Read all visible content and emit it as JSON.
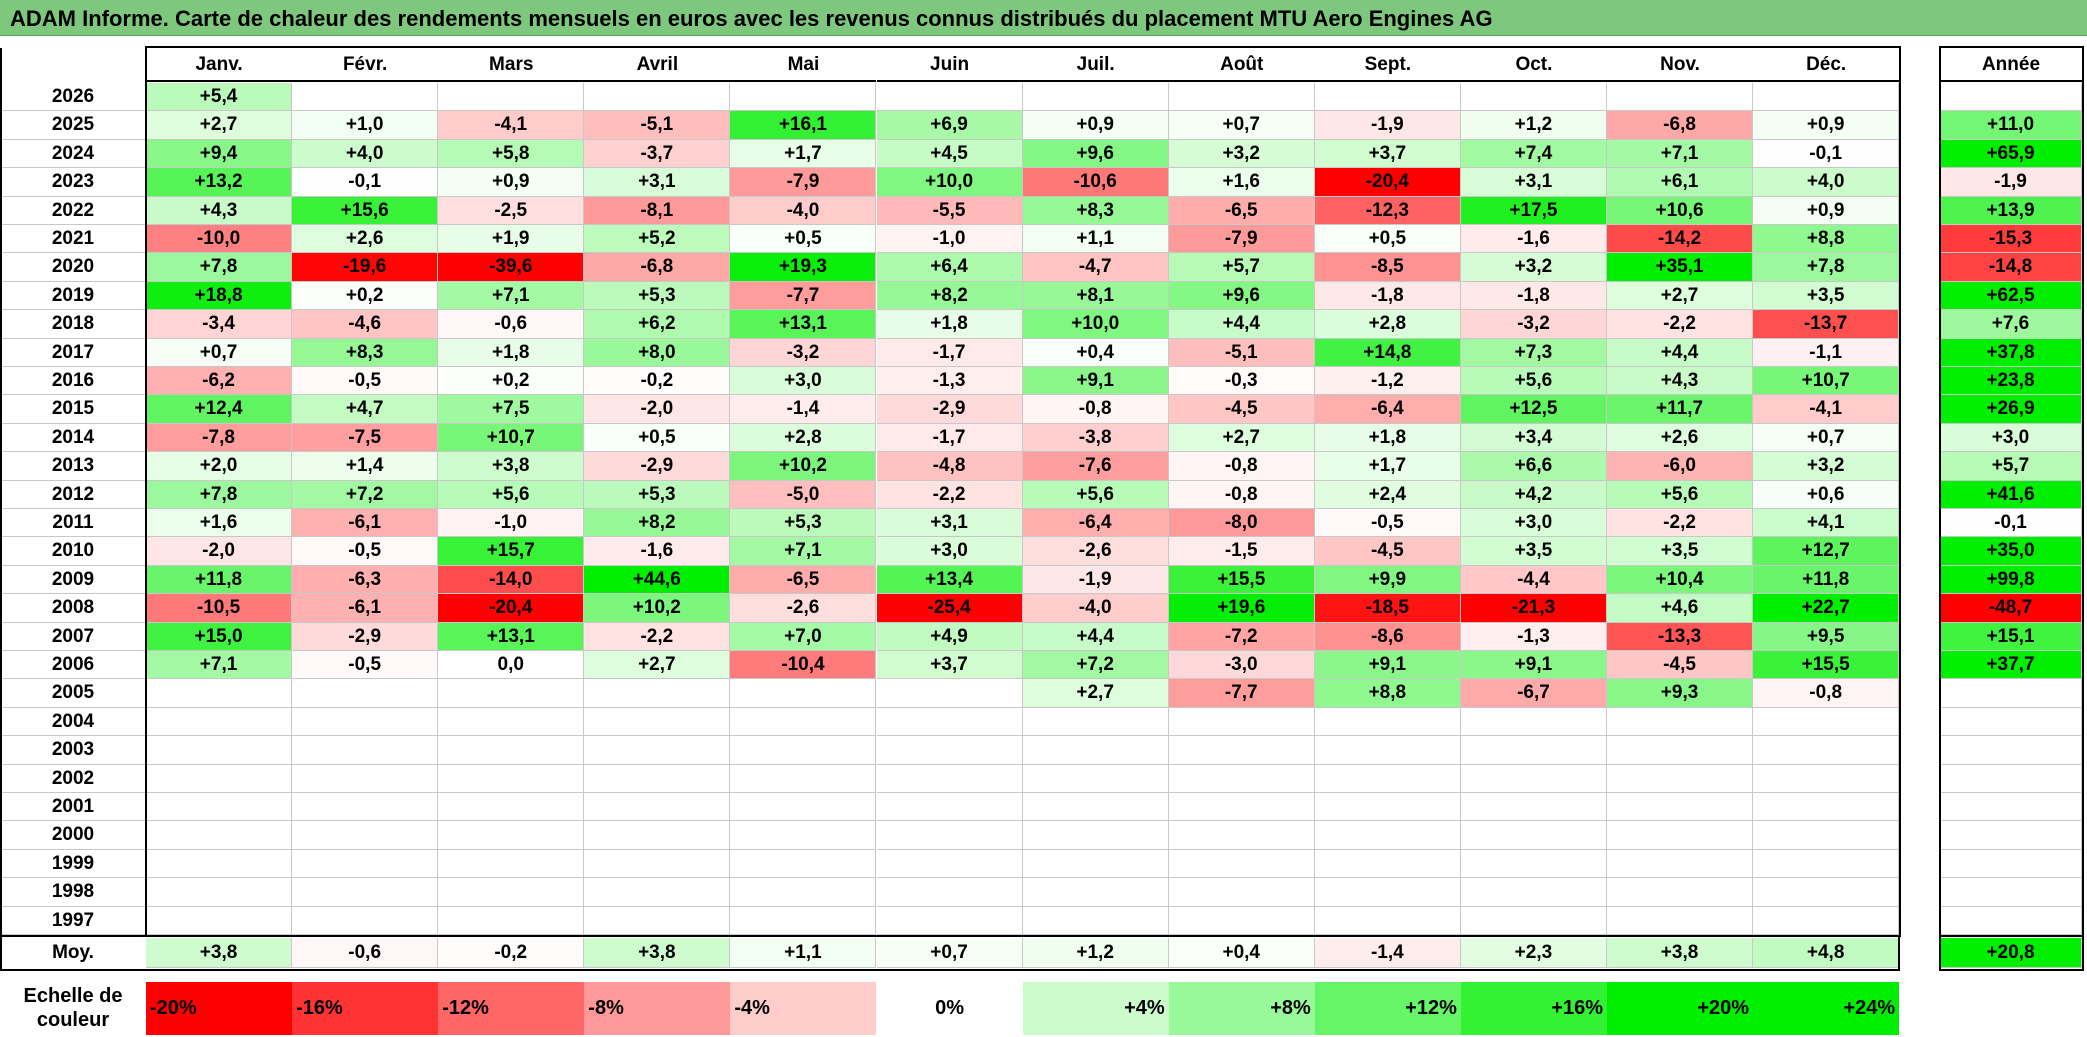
{
  "title": "ADAM Informe. Carte de chaleur des rendements mensuels en euros avec les revenus connus distribués du placement MTU Aero Engines AG",
  "chart_data": {
    "type": "heatmap",
    "months": [
      "Janv.",
      "Févr.",
      "Mars",
      "Avril",
      "Mai",
      "Juin",
      "Juil.",
      "Août",
      "Sept.",
      "Oct.",
      "Nov.",
      "Déc."
    ],
    "year_header": "Année",
    "avg_label": "Moy.",
    "scale_label": "Echelle de couleur",
    "rows": [
      {
        "year": "2026",
        "values": [
          "+5,4",
          "",
          "",
          "",
          "",
          "",
          "",
          "",
          "",
          "",
          "",
          ""
        ],
        "annual": ""
      },
      {
        "year": "2025",
        "values": [
          "+2,7",
          "+1,0",
          "-4,1",
          "-5,1",
          "+16,1",
          "+6,9",
          "+0,9",
          "+0,7",
          "-1,9",
          "+1,2",
          "-6,8",
          "+0,9"
        ],
        "annual": "+11,0"
      },
      {
        "year": "2024",
        "values": [
          "+9,4",
          "+4,0",
          "+5,8",
          "-3,7",
          "+1,7",
          "+4,5",
          "+9,6",
          "+3,2",
          "+3,7",
          "+7,4",
          "+7,1",
          "-0,1"
        ],
        "annual": "+65,9"
      },
      {
        "year": "2023",
        "values": [
          "+13,2",
          "-0,1",
          "+0,9",
          "+3,1",
          "-7,9",
          "+10,0",
          "-10,6",
          "+1,6",
          "-20,4",
          "+3,1",
          "+6,1",
          "+4,0"
        ],
        "annual": "-1,9"
      },
      {
        "year": "2022",
        "values": [
          "+4,3",
          "+15,6",
          "-2,5",
          "-8,1",
          "-4,0",
          "-5,5",
          "+8,3",
          "-6,5",
          "-12,3",
          "+17,5",
          "+10,6",
          "+0,9"
        ],
        "annual": "+13,9"
      },
      {
        "year": "2021",
        "values": [
          "-10,0",
          "+2,6",
          "+1,9",
          "+5,2",
          "+0,5",
          "-1,0",
          "+1,1",
          "-7,9",
          "+0,5",
          "-1,6",
          "-14,2",
          "+8,8"
        ],
        "annual": "-15,3"
      },
      {
        "year": "2020",
        "values": [
          "+7,8",
          "-19,6",
          "-39,6",
          "-6,8",
          "+19,3",
          "+6,4",
          "-4,7",
          "+5,7",
          "-8,5",
          "+3,2",
          "+35,1",
          "+7,8"
        ],
        "annual": "-14,8"
      },
      {
        "year": "2019",
        "values": [
          "+18,8",
          "+0,2",
          "+7,1",
          "+5,3",
          "-7,7",
          "+8,2",
          "+8,1",
          "+9,6",
          "-1,8",
          "-1,8",
          "+2,7",
          "+3,5"
        ],
        "annual": "+62,5"
      },
      {
        "year": "2018",
        "values": [
          "-3,4",
          "-4,6",
          "-0,6",
          "+6,2",
          "+13,1",
          "+1,8",
          "+10,0",
          "+4,4",
          "+2,8",
          "-3,2",
          "-2,2",
          "-13,7"
        ],
        "annual": "+7,6"
      },
      {
        "year": "2017",
        "values": [
          "+0,7",
          "+8,3",
          "+1,8",
          "+8,0",
          "-3,2",
          "-1,7",
          "+0,4",
          "-5,1",
          "+14,8",
          "+7,3",
          "+4,4",
          "-1,1"
        ],
        "annual": "+37,8"
      },
      {
        "year": "2016",
        "values": [
          "-6,2",
          "-0,5",
          "+0,2",
          "-0,2",
          "+3,0",
          "-1,3",
          "+9,1",
          "-0,3",
          "-1,2",
          "+5,6",
          "+4,3",
          "+10,7"
        ],
        "annual": "+23,8"
      },
      {
        "year": "2015",
        "values": [
          "+12,4",
          "+4,7",
          "+7,5",
          "-2,0",
          "-1,4",
          "-2,9",
          "-0,8",
          "-4,5",
          "-6,4",
          "+12,5",
          "+11,7",
          "-4,1"
        ],
        "annual": "+26,9"
      },
      {
        "year": "2014",
        "values": [
          "-7,8",
          "-7,5",
          "+10,7",
          "+0,5",
          "+2,8",
          "-1,7",
          "-3,8",
          "+2,7",
          "+1,8",
          "+3,4",
          "+2,6",
          "+0,7"
        ],
        "annual": "+3,0"
      },
      {
        "year": "2013",
        "values": [
          "+2,0",
          "+1,4",
          "+3,8",
          "-2,9",
          "+10,2",
          "-4,8",
          "-7,6",
          "-0,8",
          "+1,7",
          "+6,6",
          "-6,0",
          "+3,2"
        ],
        "annual": "+5,7"
      },
      {
        "year": "2012",
        "values": [
          "+7,8",
          "+7,2",
          "+5,6",
          "+5,3",
          "-5,0",
          "-2,2",
          "+5,6",
          "-0,8",
          "+2,4",
          "+4,2",
          "+5,6",
          "+0,6"
        ],
        "annual": "+41,6"
      },
      {
        "year": "2011",
        "values": [
          "+1,6",
          "-6,1",
          "-1,0",
          "+8,2",
          "+5,3",
          "+3,1",
          "-6,4",
          "-8,0",
          "-0,5",
          "+3,0",
          "-2,2",
          "+4,1"
        ],
        "annual": "-0,1"
      },
      {
        "year": "2010",
        "values": [
          "-2,0",
          "-0,5",
          "+15,7",
          "-1,6",
          "+7,1",
          "+3,0",
          "-2,6",
          "-1,5",
          "-4,5",
          "+3,5",
          "+3,5",
          "+12,7"
        ],
        "annual": "+35,0"
      },
      {
        "year": "2009",
        "values": [
          "+11,8",
          "-6,3",
          "-14,0",
          "+44,6",
          "-6,5",
          "+13,4",
          "-1,9",
          "+15,5",
          "+9,9",
          "-4,4",
          "+10,4",
          "+11,8"
        ],
        "annual": "+99,8"
      },
      {
        "year": "2008",
        "values": [
          "-10,5",
          "-6,1",
          "-20,4",
          "+10,2",
          "-2,6",
          "-25,4",
          "-4,0",
          "+19,6",
          "-18,5",
          "-21,3",
          "+4,6",
          "+22,7"
        ],
        "annual": "-48,7"
      },
      {
        "year": "2007",
        "values": [
          "+15,0",
          "-2,9",
          "+13,1",
          "-2,2",
          "+7,0",
          "+4,9",
          "+4,4",
          "-7,2",
          "-8,6",
          "-1,3",
          "-13,3",
          "+9,5"
        ],
        "annual": "+15,1"
      },
      {
        "year": "2006",
        "values": [
          "+7,1",
          "-0,5",
          "0,0",
          "+2,7",
          "-10,4",
          "+3,7",
          "+7,2",
          "-3,0",
          "+9,1",
          "+9,1",
          "-4,5",
          "+15,5"
        ],
        "annual": "+37,7"
      },
      {
        "year": "2005",
        "values": [
          "",
          "",
          "",
          "",
          "",
          "",
          "+2,7",
          "-7,7",
          "+8,8",
          "-6,7",
          "+9,3",
          "-0,8"
        ],
        "annual": ""
      },
      {
        "year": "2004",
        "values": [
          "",
          "",
          "",
          "",
          "",
          "",
          "",
          "",
          "",
          "",
          "",
          ""
        ],
        "annual": ""
      },
      {
        "year": "2003",
        "values": [
          "",
          "",
          "",
          "",
          "",
          "",
          "",
          "",
          "",
          "",
          "",
          ""
        ],
        "annual": ""
      },
      {
        "year": "2002",
        "values": [
          "",
          "",
          "",
          "",
          "",
          "",
          "",
          "",
          "",
          "",
          "",
          ""
        ],
        "annual": ""
      },
      {
        "year": "2001",
        "values": [
          "",
          "",
          "",
          "",
          "",
          "",
          "",
          "",
          "",
          "",
          "",
          ""
        ],
        "annual": ""
      },
      {
        "year": "2000",
        "values": [
          "",
          "",
          "",
          "",
          "",
          "",
          "",
          "",
          "",
          "",
          "",
          ""
        ],
        "annual": ""
      },
      {
        "year": "1999",
        "values": [
          "",
          "",
          "",
          "",
          "",
          "",
          "",
          "",
          "",
          "",
          "",
          ""
        ],
        "annual": ""
      },
      {
        "year": "1998",
        "values": [
          "",
          "",
          "",
          "",
          "",
          "",
          "",
          "",
          "",
          "",
          "",
          ""
        ],
        "annual": ""
      },
      {
        "year": "1997",
        "values": [
          "",
          "",
          "",
          "",
          "",
          "",
          "",
          "",
          "",
          "",
          "",
          ""
        ],
        "annual": ""
      }
    ],
    "averages": [
      "+3,8",
      "-0,6",
      "-0,2",
      "+3,8",
      "+1,1",
      "+0,7",
      "+1,2",
      "+0,4",
      "-1,4",
      "+2,3",
      "+3,8",
      "+4,8"
    ],
    "average_annual": "+20,8",
    "scale": [
      {
        "label": "-20%",
        "value": -20,
        "align": "left"
      },
      {
        "label": "-16%",
        "value": -16,
        "align": "left"
      },
      {
        "label": "-12%",
        "value": -12,
        "align": "left"
      },
      {
        "label": "-8%",
        "value": -8,
        "align": "left"
      },
      {
        "label": "-4%",
        "value": -4,
        "align": "left"
      },
      {
        "label": "0%",
        "value": 0,
        "align": "center"
      },
      {
        "label": "+4%",
        "value": 4,
        "align": "right"
      },
      {
        "label": "+8%",
        "value": 8,
        "align": "right"
      },
      {
        "label": "+12%",
        "value": 12,
        "align": "right"
      },
      {
        "label": "+16%",
        "value": 16,
        "align": "right"
      },
      {
        "label": "+20%",
        "value": 20,
        "align": "right"
      },
      {
        "label": "+24%",
        "value": 24,
        "align": "right"
      }
    ],
    "colors": {
      "negative_max": "#ff0000",
      "neutral": "#ffffff",
      "positive_max": "#00ee00",
      "title_bg": "#7ec87e"
    }
  }
}
